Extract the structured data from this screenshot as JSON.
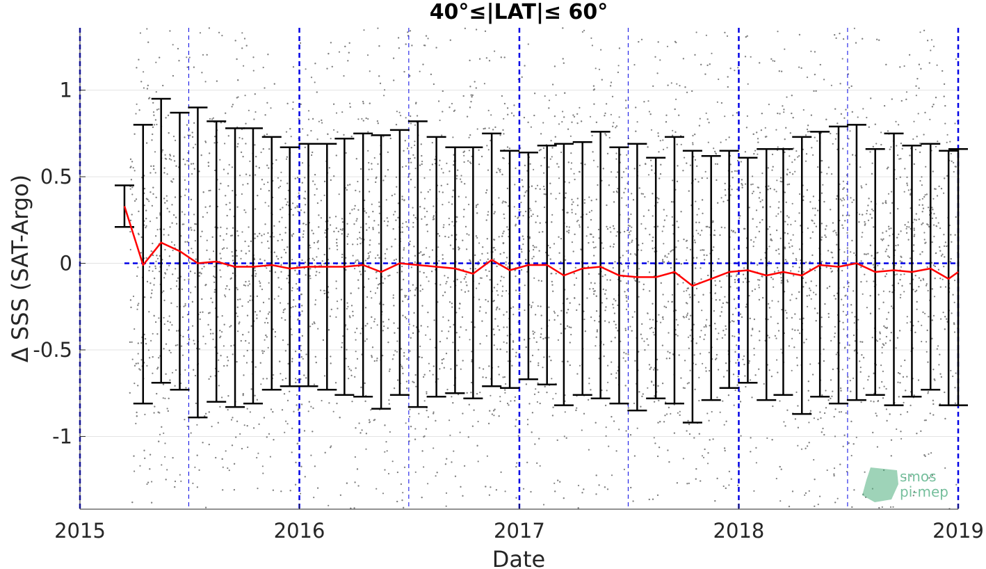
{
  "chart_data": {
    "type": "line",
    "title": "40°≤|LAT|≤ 60°",
    "xlabel": "Date",
    "ylabel": "Δ SSS (SAT-Argo)",
    "xlim": [
      "2015-01-01",
      "2019-01-01"
    ],
    "ylim": [
      -1.42,
      1.36
    ],
    "x_ticks": [
      "2015",
      "2016",
      "2017",
      "2018",
      "2019"
    ],
    "y_ticks": [
      -1,
      -0.5,
      0,
      0.5,
      1
    ],
    "y_tick_labels": [
      "-1",
      "-0.5",
      "0",
      "0.5",
      "1"
    ],
    "grid": true,
    "colors": {
      "mean_line": "#ff0000",
      "error_bars": "#000000",
      "scatter": "#808080",
      "reference_lines": "#0000e6"
    },
    "reference_lines": {
      "zero_line": 0,
      "year_lines": [
        "2015-01-01",
        "2016-01-01",
        "2017-01-01",
        "2018-01-01",
        "2019-01-01"
      ],
      "half_year_lines": [
        "2015-07-01",
        "2016-07-01",
        "2017-07-01",
        "2018-07-01"
      ]
    },
    "scatter_date_range": [
      "2015-03-25",
      "2019-01-01"
    ],
    "series": [
      {
        "type": "line",
        "dates": [
          "2015-03-16",
          "2015-04-16",
          "2015-05-16",
          "2015-06-16",
          "2015-07-16",
          "2015-08-16",
          "2015-09-16",
          "2015-10-16",
          "2015-11-16",
          "2015-12-16",
          "2016-01-16",
          "2016-02-16",
          "2016-03-16",
          "2016-04-16",
          "2016-05-16",
          "2016-06-16",
          "2016-07-16",
          "2016-08-16",
          "2016-09-16",
          "2016-10-16",
          "2016-11-16",
          "2016-12-16",
          "2017-01-16",
          "2017-02-16",
          "2017-03-16",
          "2017-04-16",
          "2017-05-16",
          "2017-06-16",
          "2017-07-16",
          "2017-08-16",
          "2017-09-16",
          "2017-10-16",
          "2017-11-16",
          "2017-12-16",
          "2018-01-16",
          "2018-02-16",
          "2018-03-16",
          "2018-04-16",
          "2018-05-16",
          "2018-06-16",
          "2018-07-16",
          "2018-08-16",
          "2018-09-16",
          "2018-10-16",
          "2018-11-16",
          "2018-12-16",
          "2019-01-01"
        ],
        "mean": [
          0.33,
          -0.01,
          0.12,
          0.07,
          0.0,
          0.01,
          -0.02,
          -0.02,
          -0.01,
          -0.03,
          -0.02,
          -0.02,
          -0.02,
          -0.01,
          -0.05,
          0.0,
          -0.01,
          -0.02,
          -0.03,
          -0.06,
          0.02,
          -0.04,
          -0.01,
          -0.01,
          -0.07,
          -0.03,
          -0.02,
          -0.07,
          -0.08,
          -0.08,
          -0.05,
          -0.13,
          -0.09,
          -0.05,
          -0.04,
          -0.07,
          -0.05,
          -0.07,
          -0.01,
          -0.02,
          0.0,
          -0.05,
          -0.04,
          -0.05,
          -0.03,
          -0.09,
          -0.05
        ],
        "err_upper": [
          0.45,
          0.8,
          0.95,
          0.87,
          0.9,
          0.82,
          0.78,
          0.78,
          0.73,
          0.67,
          0.69,
          0.69,
          0.72,
          0.75,
          0.74,
          0.77,
          0.82,
          0.73,
          0.67,
          0.67,
          0.75,
          0.65,
          0.64,
          0.68,
          0.69,
          0.7,
          0.76,
          0.67,
          0.69,
          0.61,
          0.73,
          0.65,
          0.62,
          0.65,
          0.61,
          0.66,
          0.66,
          0.73,
          0.76,
          0.79,
          0.8,
          0.66,
          0.75,
          0.68,
          0.69,
          0.65,
          0.66
        ],
        "err_lower": [
          0.21,
          -0.81,
          -0.69,
          -0.73,
          -0.89,
          -0.8,
          -0.83,
          -0.81,
          -0.73,
          -0.71,
          -0.71,
          -0.73,
          -0.76,
          -0.77,
          -0.84,
          -0.76,
          -0.83,
          -0.77,
          -0.75,
          -0.78,
          -0.71,
          -0.72,
          -0.67,
          -0.7,
          -0.82,
          -0.76,
          -0.78,
          -0.81,
          -0.85,
          -0.78,
          -0.81,
          -0.92,
          -0.79,
          -0.72,
          -0.69,
          -0.79,
          -0.76,
          -0.87,
          -0.77,
          -0.81,
          -0.79,
          -0.76,
          -0.82,
          -0.77,
          -0.73,
          -0.82,
          -0.82
        ]
      }
    ]
  },
  "logo": {
    "line1": "smos",
    "line2": "pi-mep"
  }
}
